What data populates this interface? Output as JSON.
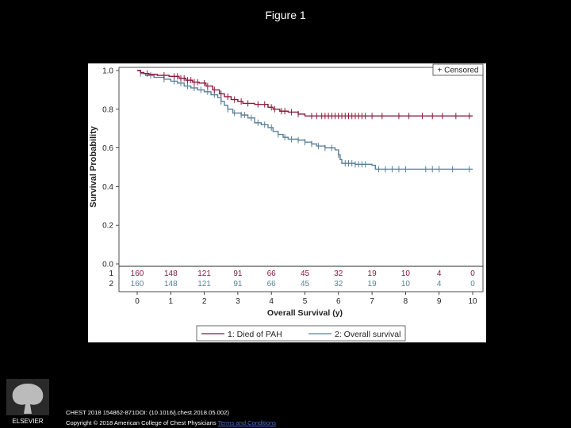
{
  "page": {
    "figure_title": "Figure 1",
    "citation_line": "CHEST 2018 154862-871DOI: (10.1016/j.chest.2018.05.002)",
    "copyright_text": "Copyright © 2018 American College of Chest Physicians",
    "terms_link": "Terms and Conditions",
    "logo_text": "ELSEVIER"
  },
  "colors": {
    "series1": "#8b1a3c",
    "series2": "#5b7f99",
    "axis": "#222222"
  },
  "chart_data": {
    "type": "line",
    "step": true,
    "title": "",
    "xlabel": "Overall Survival (y)",
    "ylabel": "Survival Probability",
    "xlim": [
      0,
      10
    ],
    "ylim": [
      0,
      1
    ],
    "xticks": [
      0,
      1,
      2,
      3,
      4,
      5,
      6,
      7,
      8,
      9,
      10
    ],
    "yticks": [
      0.0,
      0.2,
      0.4,
      0.6,
      0.8,
      1.0
    ],
    "ytick_labels": [
      "0.0",
      "0.2",
      "0.4",
      "0.6",
      "0.8",
      "1.0"
    ],
    "censored_label": "+ Censored",
    "series": [
      {
        "id": "1",
        "name": "1: Died of PAH",
        "points": [
          [
            0,
            1.0
          ],
          [
            0.1,
            0.99
          ],
          [
            0.2,
            0.985
          ],
          [
            0.35,
            0.98
          ],
          [
            0.6,
            0.975
          ],
          [
            0.95,
            0.97
          ],
          [
            1.25,
            0.96
          ],
          [
            1.45,
            0.95
          ],
          [
            1.65,
            0.94
          ],
          [
            1.85,
            0.935
          ],
          [
            2.05,
            0.92
          ],
          [
            2.25,
            0.9
          ],
          [
            2.45,
            0.88
          ],
          [
            2.6,
            0.865
          ],
          [
            2.8,
            0.85
          ],
          [
            3.0,
            0.84
          ],
          [
            3.15,
            0.83
          ],
          [
            3.5,
            0.825
          ],
          [
            3.9,
            0.81
          ],
          [
            4.05,
            0.8
          ],
          [
            4.25,
            0.79
          ],
          [
            4.5,
            0.785
          ],
          [
            4.8,
            0.775
          ],
          [
            5.0,
            0.765
          ],
          [
            10,
            0.765
          ]
        ],
        "censored": [
          0.3,
          0.8,
          1.1,
          1.2,
          1.3,
          1.4,
          1.5,
          1.6,
          1.7,
          1.8,
          2.0,
          2.1,
          2.3,
          2.5,
          2.7,
          2.9,
          3.1,
          3.3,
          3.6,
          3.8,
          4.0,
          4.1,
          4.3,
          4.4,
          4.6,
          4.8,
          5.2,
          5.35,
          5.5,
          5.6,
          5.7,
          5.8,
          5.9,
          6.0,
          6.1,
          6.2,
          6.3,
          6.4,
          6.5,
          6.6,
          6.7,
          6.8,
          7.0,
          7.3,
          7.8,
          8.1,
          8.5,
          8.8,
          9.1,
          9.5,
          9.9
        ]
      },
      {
        "id": "2",
        "name": "2: Overall survival",
        "points": [
          [
            0,
            1.0
          ],
          [
            0.1,
            0.985
          ],
          [
            0.25,
            0.975
          ],
          [
            0.5,
            0.965
          ],
          [
            0.8,
            0.955
          ],
          [
            1.0,
            0.945
          ],
          [
            1.2,
            0.935
          ],
          [
            1.4,
            0.92
          ],
          [
            1.6,
            0.91
          ],
          [
            1.8,
            0.9
          ],
          [
            2.0,
            0.89
          ],
          [
            2.2,
            0.875
          ],
          [
            2.4,
            0.86
          ],
          [
            2.5,
            0.84
          ],
          [
            2.6,
            0.82
          ],
          [
            2.7,
            0.8
          ],
          [
            2.85,
            0.78
          ],
          [
            3.1,
            0.77
          ],
          [
            3.3,
            0.755
          ],
          [
            3.5,
            0.73
          ],
          [
            3.7,
            0.72
          ],
          [
            3.9,
            0.705
          ],
          [
            4.05,
            0.685
          ],
          [
            4.2,
            0.67
          ],
          [
            4.35,
            0.655
          ],
          [
            4.5,
            0.645
          ],
          [
            4.8,
            0.64
          ],
          [
            5.0,
            0.63
          ],
          [
            5.2,
            0.62
          ],
          [
            5.35,
            0.61
          ],
          [
            5.6,
            0.6
          ],
          [
            5.9,
            0.59
          ],
          [
            6.0,
            0.565
          ],
          [
            6.05,
            0.54
          ],
          [
            6.1,
            0.52
          ],
          [
            6.5,
            0.515
          ],
          [
            7.0,
            0.51
          ],
          [
            7.1,
            0.49
          ],
          [
            10,
            0.49
          ]
        ],
        "censored": [
          0.1,
          0.4,
          0.8,
          1.1,
          1.3,
          1.5,
          1.7,
          1.9,
          2.1,
          2.3,
          2.5,
          2.7,
          2.9,
          3.1,
          3.2,
          3.4,
          3.6,
          3.8,
          4.0,
          4.2,
          4.4,
          4.6,
          4.8,
          5.0,
          5.2,
          5.4,
          5.6,
          5.8,
          6.0,
          6.2,
          6.3,
          6.4,
          6.5,
          6.6,
          6.7,
          6.8,
          7.2,
          7.4,
          7.6,
          7.8,
          8.0,
          8.6,
          8.8,
          9.0,
          9.4,
          9.9
        ]
      }
    ],
    "risk_table": {
      "times": [
        0,
        1,
        2,
        3,
        4,
        5,
        6,
        7,
        8,
        9,
        10
      ],
      "rows": [
        {
          "label": "1",
          "values": [
            "160",
            "148",
            "121",
            "91",
            "66",
            "45",
            "32",
            "19",
            "10",
            "4",
            "0"
          ]
        },
        {
          "label": "2",
          "values": [
            "160",
            "148",
            "121",
            "91",
            "66",
            "45",
            "32",
            "19",
            "10",
            "4",
            "0"
          ]
        }
      ]
    }
  }
}
